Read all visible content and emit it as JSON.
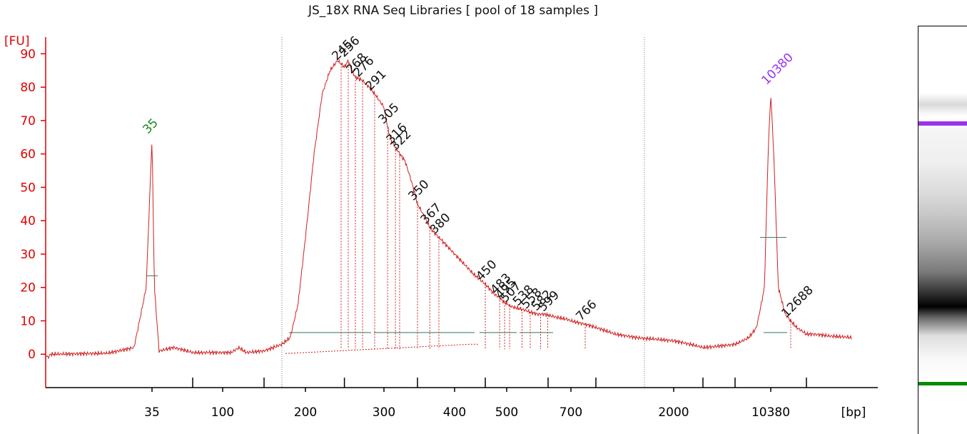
{
  "chart_data": {
    "type": "line",
    "title": "JS_18X RNA Seq Libraries  [ pool of 18 samples ]",
    "ylabel": "[FU]",
    "xlabel": "[bp]",
    "ylim": [
      -10,
      95
    ],
    "yticks": [
      0,
      10,
      20,
      30,
      40,
      50,
      60,
      70,
      80,
      90
    ],
    "xtick_labels": [
      "35",
      "100",
      "200",
      "300",
      "400",
      "500",
      "700",
      "2000",
      "10380"
    ],
    "colors": {
      "axis": "#e00000",
      "trace": "#d02020",
      "lower_marker": "#1a8a1a",
      "upper_marker": "#9933ee",
      "peak_label": "#111111",
      "baseline": "#2a7a5a"
    },
    "series": [
      {
        "x": [
          "20",
          "28",
          "32",
          "34",
          "35",
          "36",
          "38",
          "45",
          "60",
          "100",
          "110",
          "120",
          "130",
          "150",
          "170",
          "180",
          "190",
          "200",
          "210",
          "220",
          "230",
          "240",
          "245",
          "250",
          "256",
          "262",
          "268",
          "276",
          "284",
          "291",
          "300",
          "305",
          "310",
          "316",
          "322",
          "330",
          "340",
          "350",
          "360",
          "367",
          "375",
          "380",
          "400",
          "430",
          "450",
          "470",
          "483",
          "490",
          "495",
          "503",
          "507",
          "520",
          "538",
          "550",
          "560",
          "575",
          "590",
          "610",
          "640",
          "680",
          "700",
          "730",
          "766",
          "800",
          "1000",
          "1500",
          "2000",
          "3000",
          "5000",
          "7000",
          "8500",
          "9500",
          "10000",
          "10380",
          "10700",
          "11200",
          "12000",
          "12688",
          "13500",
          "15000",
          "18000",
          "25000",
          "40000"
        ],
        "y": [
          0,
          0.3,
          2,
          20,
          65,
          20,
          1,
          2,
          0.5,
          0.5,
          0.5,
          2,
          0.5,
          1,
          3,
          5,
          15,
          35,
          60,
          78,
          85,
          88,
          87,
          86,
          88,
          85,
          83,
          82,
          80,
          78,
          74,
          68,
          64,
          62,
          60,
          58,
          52,
          45,
          41,
          38,
          36,
          35,
          30,
          24,
          21,
          18,
          17,
          16,
          15.5,
          15,
          14.5,
          14,
          13.5,
          13,
          12.5,
          12,
          12,
          11.5,
          11,
          10.5,
          10,
          9.5,
          9,
          8,
          6,
          5,
          4,
          2,
          3,
          5,
          8,
          20,
          60,
          78,
          60,
          20,
          12,
          10,
          8,
          6,
          6,
          5.5,
          5
        ]
      }
    ],
    "marker_lower": {
      "size": "35",
      "height": 65
    },
    "marker_upper": {
      "size": "10380",
      "height": 78
    },
    "peaks": [
      "245",
      "256",
      "268",
      "276",
      "291",
      "305",
      "316",
      "322",
      "350",
      "367",
      "380",
      "450",
      "483",
      "495",
      "507",
      "538",
      "558",
      "582",
      "599",
      "766",
      "12688"
    ]
  }
}
